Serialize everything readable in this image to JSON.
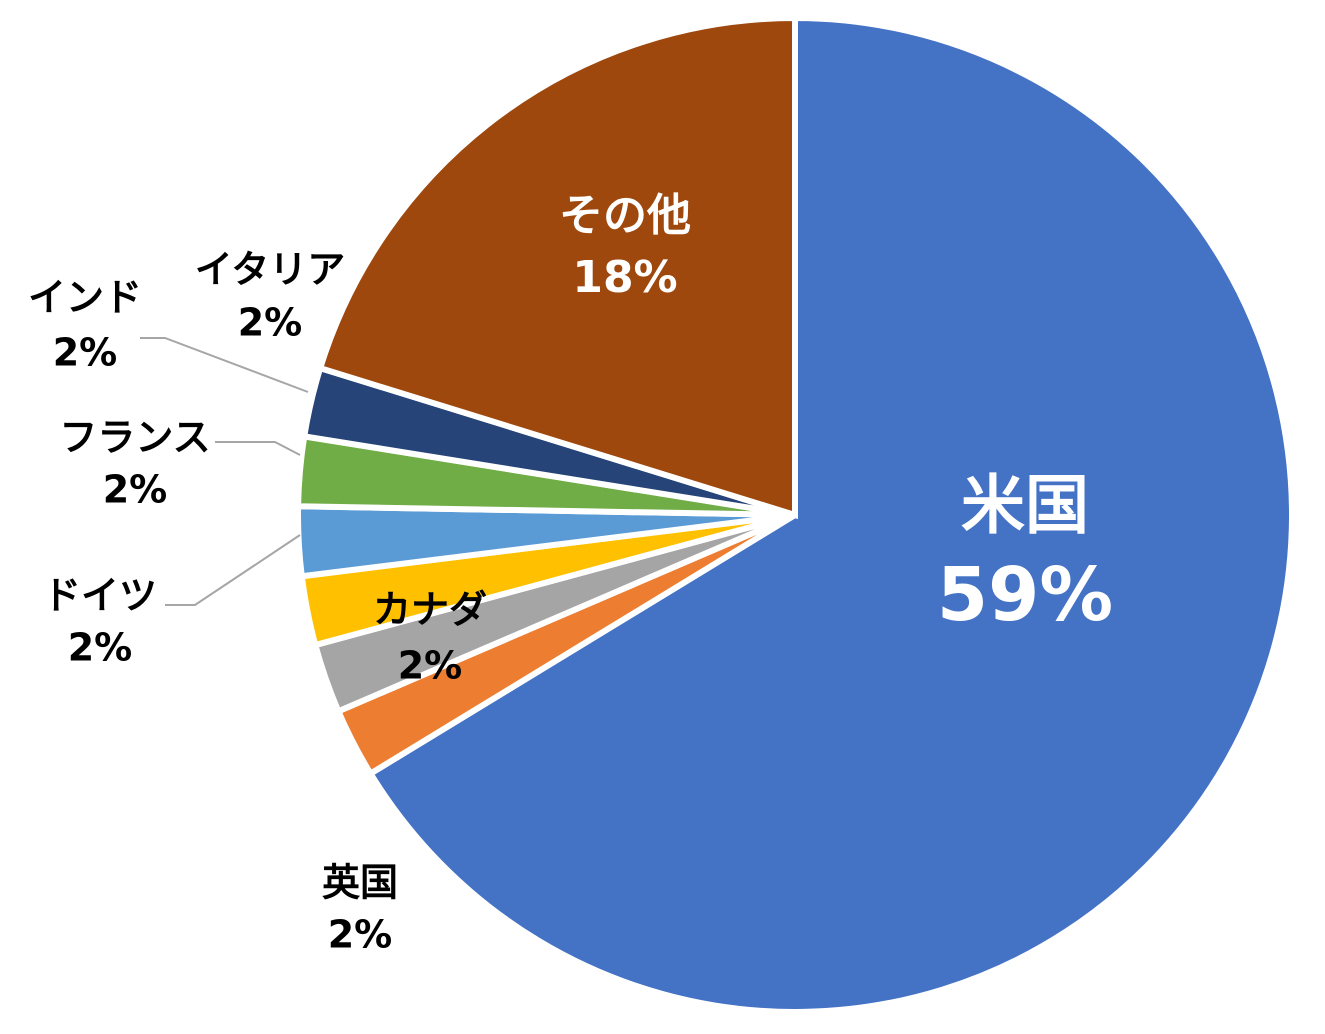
{
  "chart_data": {
    "type": "pie",
    "categories": [
      "米国",
      "英国",
      "カナダ",
      "ドイツ",
      "フランス",
      "インド",
      "イタリア",
      "その他"
    ],
    "values": [
      59,
      2,
      2,
      2,
      2,
      2,
      2,
      18
    ],
    "value_labels": [
      "59%",
      "2%",
      "2%",
      "2%",
      "2%",
      "2%",
      "2%",
      "18%"
    ],
    "colors": [
      "#4472c4",
      "#ed7d31",
      "#a5a5a5",
      "#ffc000",
      "#5b9bd5",
      "#70ad47",
      "#264478",
      "#9e480e"
    ]
  }
}
